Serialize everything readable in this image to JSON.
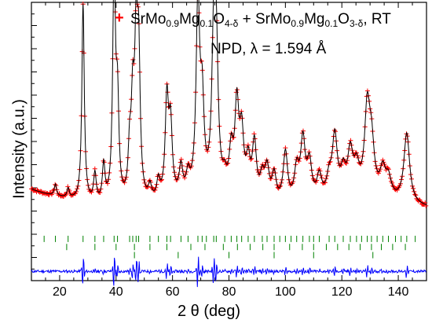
{
  "chart_data": {
    "type": "line",
    "title": "",
    "annotation_line1": {
      "legend_marker": "+",
      "parts": [
        {
          "t": "SrMo"
        },
        {
          "s": "0.9"
        },
        {
          "t": "Mg"
        },
        {
          "s": "0.1"
        },
        {
          "t": "O"
        },
        {
          "s": "4-δ"
        },
        {
          "t": " + SrMo"
        },
        {
          "s": "0.9"
        },
        {
          "t": "Mg"
        },
        {
          "s": "0.1"
        },
        {
          "t": "O"
        },
        {
          "s": "3-δ"
        },
        {
          "t": ", RT"
        }
      ]
    },
    "annotation_line2": "NPD, λ = 1.594 Å",
    "xlabel": "2 θ (deg)",
    "ylabel": "Intensity (a.u.)",
    "xlim": [
      10,
      150
    ],
    "ylim": [
      -0.1,
      1.1
    ],
    "x_ticks": [
      20,
      40,
      60,
      80,
      100,
      120,
      140
    ],
    "x_tick_labels": [
      "20",
      "40",
      "60",
      "80",
      "100",
      "120",
      "140"
    ],
    "grid": false,
    "background": 0.23,
    "peaks": [
      {
        "x": 18.5,
        "h": 0.05
      },
      {
        "x": 23.0,
        "h": 0.04
      },
      {
        "x": 28.3,
        "h": 0.85
      },
      {
        "x": 32.5,
        "h": 0.12
      },
      {
        "x": 35.6,
        "h": 0.16
      },
      {
        "x": 39.3,
        "h": 1.0
      },
      {
        "x": 40.5,
        "h": 0.4
      },
      {
        "x": 44.8,
        "h": 0.2
      },
      {
        "x": 45.9,
        "h": 0.38
      },
      {
        "x": 47.1,
        "h": 0.62
      },
      {
        "x": 48.0,
        "h": 0.58
      },
      {
        "x": 52.0,
        "h": 0.06
      },
      {
        "x": 55.0,
        "h": 0.08
      },
      {
        "x": 58.0,
        "h": 0.42
      },
      {
        "x": 59.3,
        "h": 0.3
      },
      {
        "x": 63.0,
        "h": 0.12
      },
      {
        "x": 65.5,
        "h": 0.08
      },
      {
        "x": 69.0,
        "h": 0.82
      },
      {
        "x": 70.5,
        "h": 0.36
      },
      {
        "x": 74.6,
        "h": 0.62
      },
      {
        "x": 75.5,
        "h": 0.55
      },
      {
        "x": 78.5,
        "h": 0.06
      },
      {
        "x": 80.8,
        "h": 0.18
      },
      {
        "x": 82.8,
        "h": 0.38
      },
      {
        "x": 84.5,
        "h": 0.26
      },
      {
        "x": 86.8,
        "h": 0.15
      },
      {
        "x": 89.0,
        "h": 0.24
      },
      {
        "x": 91.8,
        "h": 0.1
      },
      {
        "x": 93.5,
        "h": 0.14
      },
      {
        "x": 96.0,
        "h": 0.12
      },
      {
        "x": 100.0,
        "h": 0.22
      },
      {
        "x": 104.0,
        "h": 0.14
      },
      {
        "x": 106.2,
        "h": 0.26
      },
      {
        "x": 108.5,
        "h": 0.16
      },
      {
        "x": 112.0,
        "h": 0.1
      },
      {
        "x": 115.5,
        "h": 0.08
      },
      {
        "x": 117.5,
        "h": 0.26
      },
      {
        "x": 120.5,
        "h": 0.1
      },
      {
        "x": 123.0,
        "h": 0.18
      },
      {
        "x": 125.2,
        "h": 0.11
      },
      {
        "x": 129.0,
        "h": 0.36
      },
      {
        "x": 130.5,
        "h": 0.2
      },
      {
        "x": 134.5,
        "h": 0.11
      },
      {
        "x": 136.5,
        "h": 0.08
      },
      {
        "x": 143.0,
        "h": 0.3
      }
    ],
    "bragg_row1": [
      14.5,
      18.5,
      23.0,
      28.3,
      32.5,
      35.6,
      39.3,
      40.5,
      44.8,
      45.9,
      47.1,
      48.0,
      52.0,
      55.0,
      58.0,
      59.3,
      63.0,
      65.5,
      69.0,
      70.5,
      72.0,
      74.6,
      75.5,
      78.5,
      80.8,
      82.8,
      84.5,
      86.8,
      89.0,
      91.8,
      93.5,
      96.0,
      98.0,
      100.0,
      102.0,
      104.0,
      106.2,
      108.5,
      110.0,
      112.0,
      115.5,
      117.5,
      120.5,
      123.0,
      125.2,
      127.0,
      129.0,
      130.5,
      132.5,
      134.5,
      136.5,
      139.0,
      141.0,
      143.0,
      146.0
    ],
    "bragg_row2": [
      22.5,
      32.5,
      40.0,
      46.5,
      52.0,
      58.0,
      66.5,
      71.5,
      78.0,
      83.0,
      87.5,
      92.0,
      96.0,
      101.5,
      106.0,
      110.0,
      114.5,
      118.5,
      122.5,
      126.5,
      130.5,
      134.0,
      138.0,
      142.5
    ],
    "bragg_row3": [
      46.5,
      62.0,
      80.0,
      96.0,
      110.0,
      131.0
    ],
    "colors": {
      "observed": "#ff0000",
      "calculated": "#000000",
      "bragg": "#008000",
      "difference": "#0000ff"
    }
  }
}
